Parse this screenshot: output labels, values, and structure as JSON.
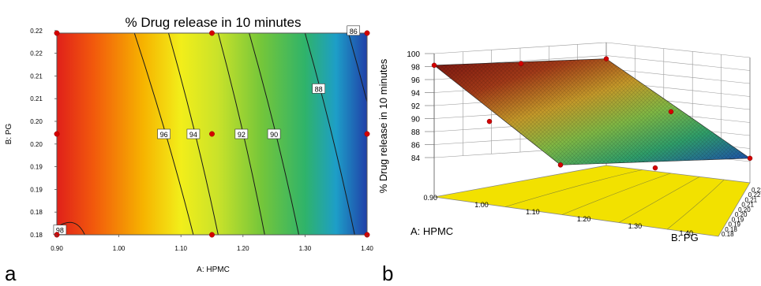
{
  "panels": {
    "a_label": "a",
    "b_label": "b"
  },
  "chart_data": [
    {
      "type": "contour",
      "title": "% Drug release in 10 minutes",
      "xlabel": "A: HPMC",
      "ylabel": "B: PG",
      "xlim": [
        0.9,
        1.4
      ],
      "ylim": [
        0.18,
        0.22
      ],
      "x_ticks": [
        "0.90",
        "1.00",
        "1.10",
        "1.20",
        "1.30",
        "1.40"
      ],
      "y_ticks": [
        "0.18",
        "0.18",
        "0.19",
        "0.19",
        "0.20",
        "0.20",
        "0.21",
        "0.21",
        "0.22",
        "0.22"
      ],
      "contour_levels": [
        98,
        96,
        94,
        92,
        90,
        88,
        86
      ],
      "contour_labels": [
        "98",
        "96",
        "94",
        "92",
        "90",
        "88",
        "86"
      ],
      "design_points": [
        {
          "x": 0.9,
          "y": 0.18
        },
        {
          "x": 1.15,
          "y": 0.18
        },
        {
          "x": 1.4,
          "y": 0.18
        },
        {
          "x": 0.9,
          "y": 0.2
        },
        {
          "x": 1.15,
          "y": 0.2
        },
        {
          "x": 1.4,
          "y": 0.2
        },
        {
          "x": 0.9,
          "y": 0.22
        },
        {
          "x": 1.15,
          "y": 0.22
        },
        {
          "x": 1.4,
          "y": 0.22
        }
      ],
      "colors": {
        "high": "#d7191c",
        "mid_high": "#ffd700",
        "mid": "#8dc63f",
        "mid_low": "#2db36a",
        "low": "#1f3fa6",
        "points": "#d40000"
      }
    },
    {
      "type": "surface3d",
      "zlabel": "% Drug release in 10 minutes",
      "xlabel": "A: HPMC",
      "ylabel": "B: PG",
      "z_ticks": [
        "100",
        "98",
        "96",
        "94",
        "92",
        "90",
        "88",
        "86",
        "84"
      ],
      "x_ticks": [
        "0.90",
        "1.00",
        "1.10",
        "1.20",
        "1.30",
        "1.40"
      ],
      "y_ticks": [
        "0.18",
        "0.18",
        "0.19",
        "0.19",
        "0.20",
        "0.20",
        "0.21",
        "0.21",
        "0.22",
        "0.22"
      ],
      "zlim": [
        84,
        100
      ],
      "surface_corners": {
        "hpmc_low_pg_low": 98.2,
        "hpmc_low_pg_high": 97.5,
        "hpmc_high_pg_low": 86.5,
        "hpmc_high_pg_high": 84.5
      },
      "floor_color": "#f2e100",
      "colors": {
        "high": "#8b1a1a",
        "mid": "#c9a227",
        "low_mid": "#3a9d5a",
        "low": "#1f4fb0"
      }
    }
  ]
}
